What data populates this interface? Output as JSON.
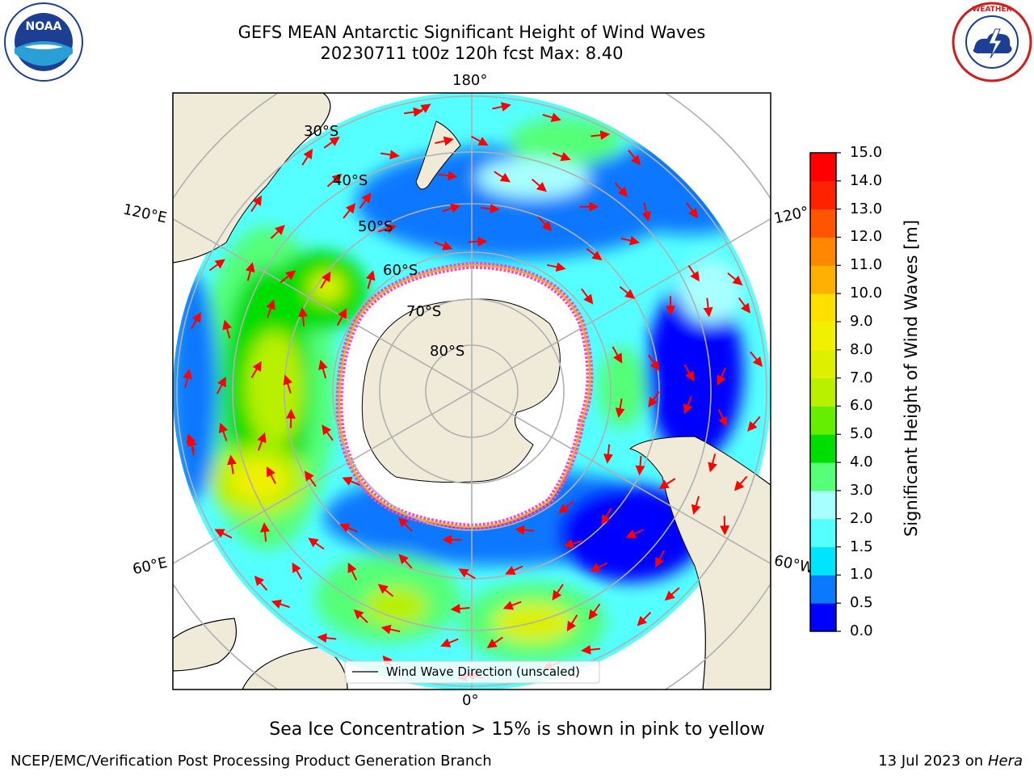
{
  "header": {
    "title_line1": "GEFS MEAN Antarctic Significant Height of Wind Waves",
    "title_line2": "20230711 t00z 120h fcst   Max: 8.40"
  },
  "logos": {
    "left": "noaa-logo",
    "right": "national-weather-service-logo"
  },
  "map": {
    "projection": "south-polar-stereographic",
    "lon_labels": [
      "180°",
      "120°E",
      "120°",
      "60°E",
      "60°W",
      "0°"
    ],
    "lat_labels": [
      "30°S",
      "40°S",
      "50°S",
      "60°S",
      "70°S",
      "80°S"
    ],
    "legend_label": "Wind Wave Direction (unscaled)",
    "colors": {
      "land": "#efebd8",
      "ice_edge": "#ff44cc",
      "arrows": "#ff0000",
      "grid": "#b0b0b0"
    }
  },
  "colorbar": {
    "title": "Significant Height of Wind Waves [m]",
    "ticks": [
      "0.0",
      "0.5",
      "1.0",
      "1.5",
      "2.0",
      "3.0",
      "4.0",
      "5.0",
      "6.0",
      "7.0",
      "8.0",
      "9.0",
      "10.0",
      "11.0",
      "12.0",
      "13.0",
      "14.0",
      "15.0"
    ],
    "colors": [
      "#0000ff",
      "#0a78ff",
      "#00e5ff",
      "#55ffff",
      "#a8ffff",
      "#55ff77",
      "#00dd00",
      "#66ee00",
      "#b8f000",
      "#dcf000",
      "#f0f000",
      "#ffe000",
      "#ffb000",
      "#ff8800",
      "#ff5500",
      "#ff2200",
      "#ff0000"
    ]
  },
  "caption": "Sea Ice Concentration > 15% is shown in pink to yellow",
  "footer": {
    "left": "NCEP/EMC/Verification Post Processing Product Generation Branch",
    "right_date": "13 Jul 2023 on ",
    "right_host": "Hera"
  }
}
